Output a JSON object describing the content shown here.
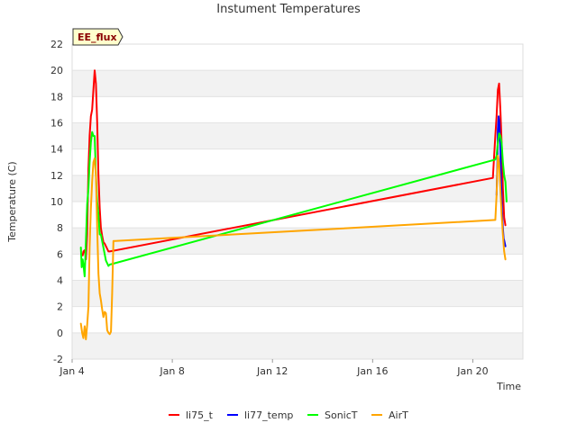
{
  "chart_data": {
    "type": "line",
    "title": "Instument Temperatures",
    "xlabel": "Time",
    "ylabel": "Temperature (C)",
    "badge": "EE_flux",
    "xlim": [
      4,
      22
    ],
    "ylim": [
      -2,
      22
    ],
    "y_ticks": [
      -2,
      0,
      2,
      4,
      6,
      8,
      10,
      12,
      14,
      16,
      18,
      20,
      22
    ],
    "x_ticks": [
      {
        "value": 4,
        "label": "Jan 4"
      },
      {
        "value": 8,
        "label": "Jan 8"
      },
      {
        "value": 12,
        "label": "Jan 12"
      },
      {
        "value": 16,
        "label": "Jan 16"
      },
      {
        "value": 20,
        "label": "Jan 20"
      }
    ],
    "grid": true,
    "legend_position": "bottom",
    "series": [
      {
        "name": "li75_t",
        "color": "#ff0000",
        "x": [
          4.42,
          4.45,
          4.5,
          4.55,
          4.6,
          4.65,
          4.7,
          4.75,
          4.8,
          4.85,
          4.9,
          4.95,
          5.0,
          5.05,
          5.1,
          5.15,
          5.2,
          5.25,
          5.3,
          5.35,
          5.4,
          5.45,
          5.5,
          20.8,
          20.85,
          20.9,
          20.95,
          21.0,
          21.05,
          21.1,
          21.15,
          21.2,
          21.25,
          21.3
        ],
        "y": [
          5.9,
          6.2,
          6.3,
          5.6,
          7.5,
          12.5,
          15.0,
          16.5,
          17.0,
          18.5,
          20.0,
          19.0,
          16.0,
          12.0,
          9.5,
          8.0,
          7.4,
          6.9,
          6.8,
          6.6,
          6.4,
          6.2,
          6.2,
          11.8,
          13.5,
          15.0,
          16.5,
          18.5,
          19.0,
          17.0,
          14.5,
          11.0,
          8.8,
          8.2
        ]
      },
      {
        "name": "li77_temp",
        "color": "#0000ff",
        "x": [
          20.95,
          20.98,
          21.0,
          21.03,
          21.06,
          21.1,
          21.13,
          21.16,
          21.2,
          21.23,
          21.26,
          21.3
        ],
        "y": [
          10.5,
          13.0,
          15.5,
          16.5,
          16.0,
          14.0,
          11.5,
          9.5,
          8.0,
          7.2,
          7.0,
          6.6
        ]
      },
      {
        "name": "SonicT",
        "color": "#00ff00",
        "x": [
          4.35,
          4.38,
          4.42,
          4.45,
          4.5,
          4.55,
          4.6,
          4.65,
          4.7,
          4.75,
          4.8,
          4.85,
          4.9,
          4.95,
          5.0,
          5.05,
          5.1,
          5.15,
          5.2,
          5.25,
          5.3,
          5.35,
          5.4,
          5.45,
          5.5,
          20.9,
          20.95,
          21.0,
          21.05,
          21.1,
          21.15,
          21.2,
          21.25,
          21.3,
          21.35
        ],
        "y": [
          6.5,
          5.0,
          5.6,
          5.2,
          4.3,
          7.0,
          9.8,
          11.0,
          13.0,
          14.5,
          15.3,
          15.0,
          15.0,
          12.0,
          10.0,
          9.0,
          7.5,
          7.5,
          7.0,
          6.5,
          6.0,
          5.5,
          5.3,
          5.1,
          5.2,
          13.2,
          13.5,
          14.5,
          15.2,
          15.0,
          14.5,
          13.0,
          12.0,
          11.5,
          10.0
        ]
      },
      {
        "name": "AirT",
        "color": "#ffa500",
        "x": [
          4.35,
          4.4,
          4.45,
          4.5,
          4.55,
          4.6,
          4.65,
          4.7,
          4.75,
          4.8,
          4.85,
          4.9,
          4.95,
          5.0,
          5.05,
          5.1,
          5.15,
          5.2,
          5.25,
          5.3,
          5.35,
          5.4,
          5.45,
          5.5,
          5.55,
          5.6,
          5.65,
          5.72,
          20.9,
          20.95,
          21.0,
          21.05,
          21.1,
          21.15,
          21.2,
          21.25,
          21.3
        ],
        "y": [
          0.7,
          0.0,
          -0.4,
          0.5,
          -0.5,
          0.6,
          2.0,
          6.5,
          9.5,
          11.5,
          13.0,
          13.3,
          12.0,
          8.0,
          4.5,
          3.0,
          2.5,
          1.8,
          1.2,
          1.6,
          1.5,
          0.2,
          0.0,
          -0.1,
          0.1,
          3.0,
          7.0,
          7.0,
          8.6,
          10.5,
          13.5,
          13.0,
          11.0,
          9.0,
          7.5,
          6.2,
          5.6
        ]
      }
    ]
  }
}
